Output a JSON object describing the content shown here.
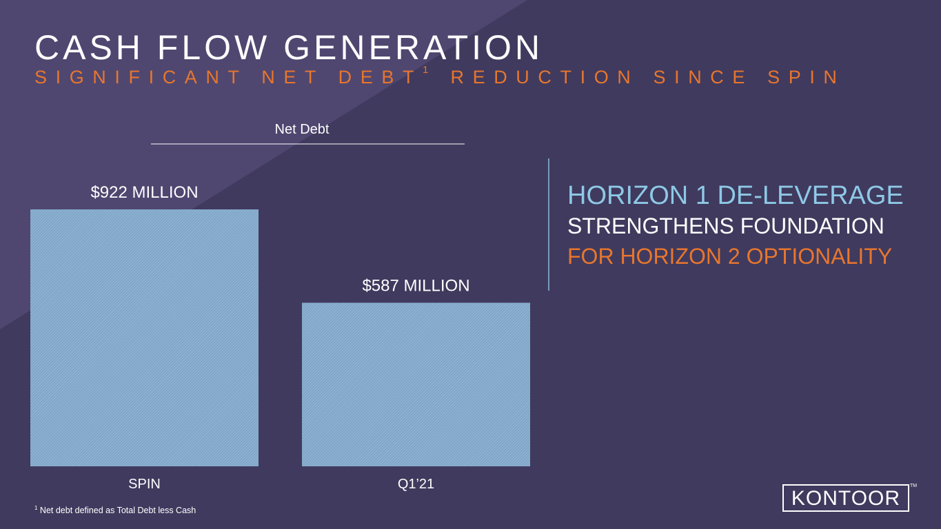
{
  "title": "CASH FLOW GENERATION",
  "subtitle": {
    "before": "SIGNIFICANT NET DEBT",
    "sup": "1",
    "after": " REDUCTION SINCE SPIN"
  },
  "callout": {
    "line1": "HORIZON 1 DE-LEVERAGE",
    "line2": "STRENGTHENS FOUNDATION",
    "line3": "FOR HORIZON 2 OPTIONALITY"
  },
  "footnote": {
    "sup": "1",
    "text": " Net debt defined as Total Debt less Cash"
  },
  "logo": {
    "text": "KONTOOR",
    "tm": "TM"
  },
  "colors": {
    "background": "#403a5e",
    "accent_orange": "#e8762d",
    "accent_blue": "#8ec9e6",
    "bar_fill": "#7fa6c8"
  },
  "chart_data": {
    "type": "bar",
    "title": "Net Debt",
    "categories": [
      "SPIN",
      "Q1’21"
    ],
    "values": [
      922,
      587
    ],
    "value_labels": [
      "$922 MILLION",
      "$587 MILLION"
    ],
    "unit": "$M",
    "ylim": [
      0,
      922
    ],
    "xlabel": "",
    "ylabel": "",
    "grid": false,
    "legend": "none"
  }
}
